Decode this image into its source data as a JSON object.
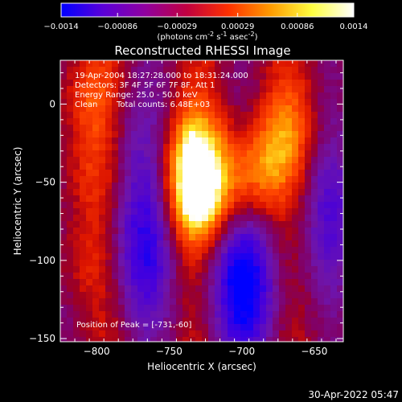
{
  "colorbar": {
    "ticks": [
      "-0.0014",
      "-0.00086",
      "-0.00029",
      "0.00029",
      "0.00086",
      "0.0014"
    ],
    "tick_values": [
      -0.0014,
      -0.00086,
      -0.00029,
      0.00029,
      0.00086,
      0.0014
    ],
    "units_main": "(photons cm",
    "units_exp1": "-2",
    "units_mid1": " s",
    "units_exp2": "-1",
    "units_mid2": " asec",
    "units_exp3": "-2",
    "units_end": ")",
    "colors": [
      "#0000ff",
      "#5a00d8",
      "#9000a0",
      "#c00040",
      "#ff3000",
      "#ff9a00",
      "#ffff40",
      "#ffffff"
    ]
  },
  "chart_data": {
    "type": "heatmap",
    "title": "Reconstructed RHESSI Image",
    "xlabel": "Heliocentric X (arcsec)",
    "ylabel": "Heliocentric Y (arcsec)",
    "xlim": [
      -825,
      -630
    ],
    "ylim": [
      -152,
      28
    ],
    "xticks": [
      -800,
      -750,
      -700,
      -650
    ],
    "yticks": [
      -150,
      -100,
      -50,
      0
    ],
    "xtick_labels": [
      "−800",
      "−750",
      "−700",
      "−650"
    ],
    "ytick_labels": [
      "−150",
      "−100",
      "−50",
      "0"
    ],
    "annotations": {
      "time": "19-Apr-2004 18:27:28.000 to 18:31:24.000",
      "detectors": "Detectors: 3F 4F 5F 6F 7F 8F, Att 1",
      "energy": "Energy Range: 25.0 - 50.0 keV",
      "clean": "Clean",
      "counts": "Total counts: 6.48E+03",
      "peak": "Position of Peak = [-731,-60]"
    },
    "peak": [
      -731,
      -60
    ],
    "value_range": [
      -0.0014,
      0.0014
    ],
    "sources": [
      {
        "x": -731,
        "y": -60,
        "amp": 0.0014
      },
      {
        "x": -733,
        "y": -30,
        "amp": 0.001
      },
      {
        "x": -705,
        "y": -50,
        "amp": 0.0006
      },
      {
        "x": -685,
        "y": -42,
        "amp": 0.0007
      },
      {
        "x": -668,
        "y": -18,
        "amp": 0.0006
      },
      {
        "x": -806,
        "y": 4,
        "amp": 0.0006
      },
      {
        "x": -805,
        "y": -45,
        "amp": 0.0004
      },
      {
        "x": -810,
        "y": -100,
        "amp": 0.00035
      }
    ],
    "negative_regions": [
      {
        "x": -770,
        "y": -95,
        "amp": -0.0009
      },
      {
        "x": -705,
        "y": -115,
        "amp": -0.0008
      },
      {
        "x": -690,
        "y": -118,
        "amp": -0.0006
      },
      {
        "x": -640,
        "y": -70,
        "amp": -0.0006
      },
      {
        "x": -775,
        "y": -25,
        "amp": -0.0004
      }
    ]
  },
  "footer": {
    "date": "30-Apr-2022 05:47"
  }
}
